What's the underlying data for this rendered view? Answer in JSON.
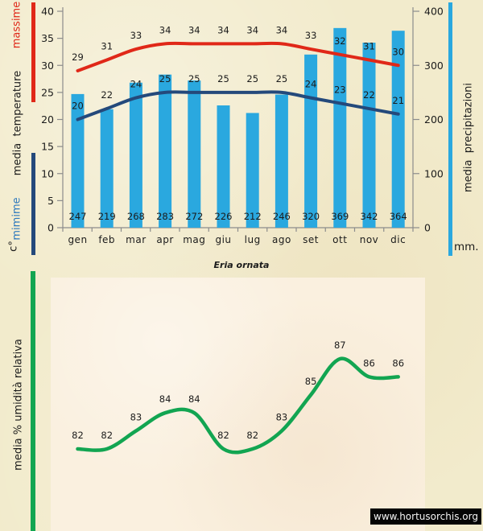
{
  "page": {
    "background": "#F2EBCC",
    "panel_background": "#FAF0DF",
    "caption": "Eria ornata",
    "watermark": "www.hortusorchis.org"
  },
  "side_labels": {
    "massime": "massime",
    "media_temperature": "media  temperature",
    "mimime": "mimime",
    "celsius": "c°",
    "media_precipitazioni": "media  precipitazioni",
    "mm": "mm.",
    "umidita": "media % umidità relativa"
  },
  "colors": {
    "bar": "#2AA8DF",
    "max_line": "#E02818",
    "min_line": "#24497B",
    "humidity_line": "#12A551",
    "massime_label": "#E02818",
    "mimime_label": "#2E79BD",
    "axis": "#8C8C8C",
    "text": "#1B1B1B"
  },
  "chart_data": [
    {
      "type": "bar",
      "subtype": "bar-and-lines-combo",
      "categories": [
        "gen",
        "feb",
        "mar",
        "apr",
        "mag",
        "giu",
        "lug",
        "ago",
        "set",
        "ott",
        "nov",
        "dic"
      ],
      "series": [
        {
          "name": "media precipitazioni",
          "kind": "bar",
          "axis": "right",
          "values": [
            247,
            219,
            268,
            283,
            272,
            226,
            212,
            246,
            320,
            369,
            342,
            364
          ]
        },
        {
          "name": "massime",
          "kind": "line",
          "axis": "left",
          "values": [
            29,
            31,
            33,
            34,
            34,
            34,
            34,
            34,
            33,
            32,
            31,
            30
          ]
        },
        {
          "name": "mimime",
          "kind": "line",
          "axis": "left",
          "values": [
            20,
            22,
            24,
            25,
            25,
            25,
            25,
            25,
            24,
            23,
            22,
            21
          ]
        }
      ],
      "left_axis": {
        "label": "media temperature",
        "unit": "c°",
        "range": [
          0,
          40
        ],
        "ticks": [
          0,
          5,
          10,
          15,
          20,
          25,
          30,
          35,
          40
        ]
      },
      "right_axis": {
        "label": "media precipitazioni",
        "unit": "mm.",
        "range": [
          0,
          400
        ],
        "ticks": [
          0,
          100,
          200,
          300,
          400
        ]
      },
      "grid": false,
      "legend_position": "left-and-right-color-bars"
    },
    {
      "type": "line",
      "title": "Eria ornata",
      "series": [
        {
          "name": "media % umidità relativa",
          "values": [
            82,
            82,
            83,
            84,
            84,
            82,
            82,
            83,
            85,
            87,
            86,
            86
          ]
        }
      ],
      "point_labels": [
        "82",
        "82",
        "83",
        "84",
        "84",
        "82",
        "82",
        "83",
        "85",
        "87",
        "86",
        "86"
      ],
      "axes_visible": false,
      "grid": false,
      "legend_position": "left-color-bar"
    }
  ]
}
